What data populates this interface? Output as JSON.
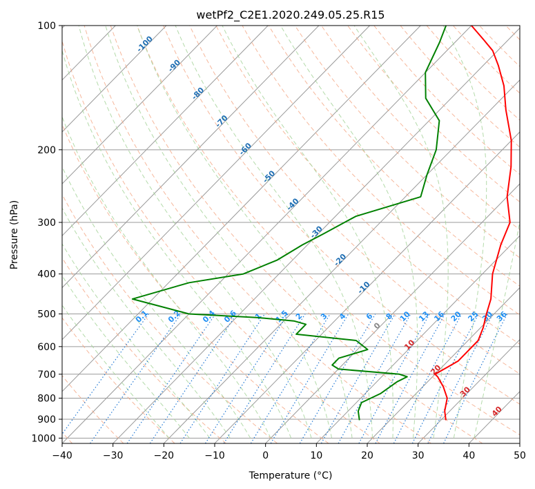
{
  "chart_data": {
    "type": "line",
    "title": "wetPf2_C2E1.2020.249.05.25.R15",
    "xlabel": "Temperature (°C)",
    "ylabel": "Pressure (hPa)",
    "xlim": [
      -40,
      50
    ],
    "ylim": [
      1030,
      100
    ],
    "y_scale": "log",
    "xticks": [
      -40,
      -30,
      -20,
      -10,
      0,
      10,
      20,
      30,
      40,
      50
    ],
    "yticks": [
      100,
      200,
      300,
      400,
      500,
      600,
      700,
      800,
      900,
      1000
    ],
    "grid": true,
    "series": [
      {
        "color": "#ff0000",
        "points": [
          [
            31,
            905
          ],
          [
            29,
            860
          ],
          [
            27,
            800
          ],
          [
            24,
            750
          ],
          [
            21,
            710
          ],
          [
            20,
            700
          ],
          [
            21,
            675
          ],
          [
            22,
            650
          ],
          [
            22,
            620
          ],
          [
            22,
            580
          ],
          [
            20.5,
            540
          ],
          [
            18.5,
            500
          ],
          [
            16.5,
            460
          ],
          [
            12,
            400
          ],
          [
            8,
            340
          ],
          [
            5.5,
            300
          ],
          [
            0,
            260
          ],
          [
            -5,
            220
          ],
          [
            -10,
            190
          ],
          [
            -17,
            160
          ],
          [
            -22,
            140
          ],
          [
            -27,
            125
          ],
          [
            -31,
            115
          ],
          [
            -35,
            108
          ],
          [
            -40,
            100
          ]
        ]
      },
      {
        "color": "#008000",
        "points": [
          [
            14,
            905
          ],
          [
            12,
            860
          ],
          [
            11,
            820
          ],
          [
            13,
            780
          ],
          [
            14,
            730
          ],
          [
            15,
            710
          ],
          [
            13,
            700
          ],
          [
            0,
            680
          ],
          [
            -2,
            665
          ],
          [
            -2,
            640
          ],
          [
            2,
            610
          ],
          [
            -2,
            580
          ],
          [
            -15,
            560
          ],
          [
            -15,
            530
          ],
          [
            -18,
            520
          ],
          [
            -26,
            510
          ],
          [
            -40,
            500
          ],
          [
            -54,
            460
          ],
          [
            -46,
            420
          ],
          [
            -37,
            400
          ],
          [
            -33,
            370
          ],
          [
            -31,
            340
          ],
          [
            -29,
            320
          ],
          [
            -26,
            290
          ],
          [
            -17,
            260
          ],
          [
            -20,
            230
          ],
          [
            -23,
            200
          ],
          [
            -28,
            170
          ],
          [
            -35,
            150
          ],
          [
            -40,
            130
          ],
          [
            -43,
            110
          ],
          [
            -45,
            100
          ]
        ]
      }
    ],
    "dry_adiabat_labels": [
      "-100",
      "-90",
      "-80",
      "-70",
      "-60",
      "-50",
      "-40",
      "-30",
      "-20",
      "-10",
      "0",
      "10",
      "20",
      "30",
      "40"
    ],
    "mixing_ratio_labels": [
      "0.1",
      "0.2",
      "0.4",
      "0.6",
      "1",
      "1.5",
      "2",
      "3",
      "4",
      "6",
      "8",
      "10",
      "13",
      "16",
      "20",
      "25",
      "30",
      "36"
    ],
    "colors": {
      "temperature": "#ff0000",
      "dewpoint": "#008000",
      "isotherm": "#999999",
      "isobar": "#999999",
      "dry_adiabat": "#f4a582",
      "moist_adiabat": "#a6d49a",
      "mixing_ratio": "#1f77d4",
      "dry_adiabat_label": "#1f6fb4",
      "dry_adiabat_label_warm": "#d62728",
      "dry_adiabat_label_zero": "#888888",
      "mixing_ratio_label": "#1f8ff4"
    }
  }
}
